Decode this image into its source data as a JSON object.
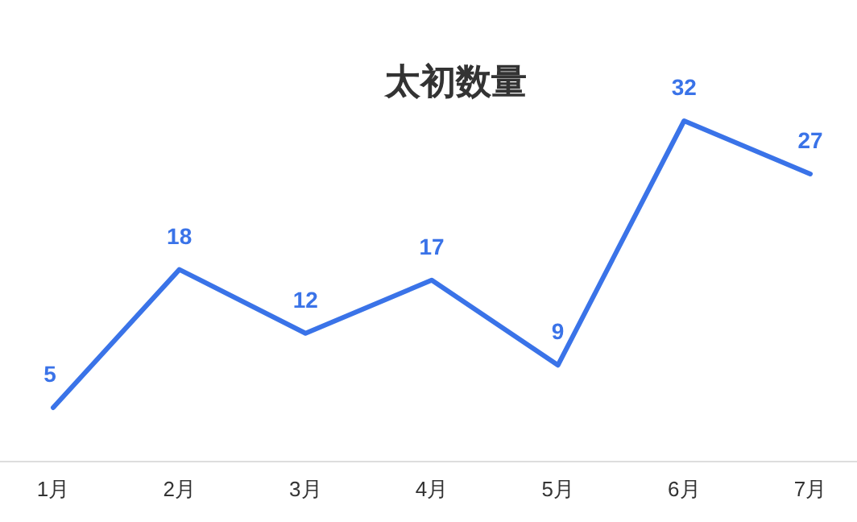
{
  "chart_data": {
    "type": "line",
    "title": "太初数量",
    "categories": [
      "1月",
      "2月",
      "3月",
      "4月",
      "5月",
      "6月",
      "7月"
    ],
    "series": [
      {
        "color": "#3a73e8",
        "values": [
          5,
          18,
          12,
          17,
          9,
          32,
          27
        ]
      }
    ],
    "data_labels": true,
    "marker": "none",
    "line_style": "solid"
  }
}
